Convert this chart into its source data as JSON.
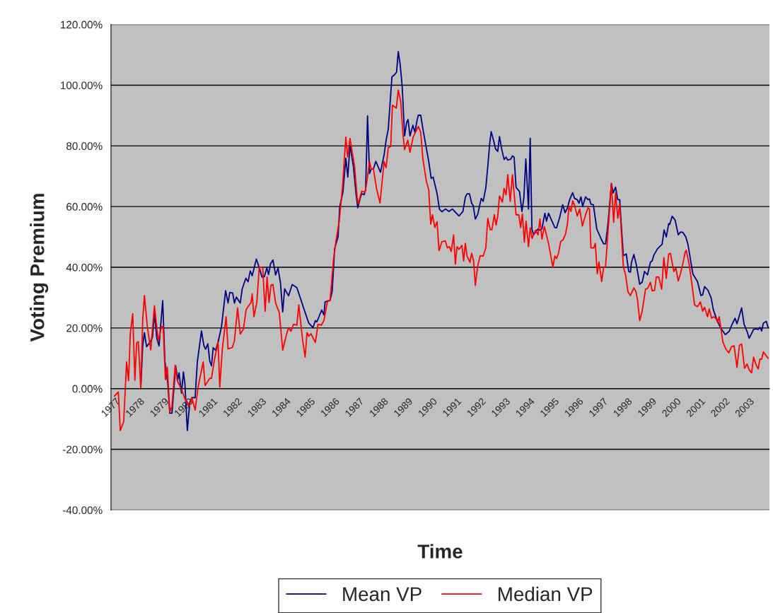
{
  "chart_data": {
    "type": "line",
    "xlabel": "Time",
    "ylabel": "Voting Premium",
    "xlim": [
      1977,
      2004
    ],
    "xticks": [
      1977,
      1978,
      1979,
      1980,
      1981,
      1982,
      1983,
      1984,
      1985,
      1986,
      1987,
      1988,
      1989,
      1990,
      1991,
      1992,
      1993,
      1994,
      1995,
      1996,
      1997,
      1998,
      1999,
      2000,
      2001,
      2002,
      2003,
      {
        "value": 2004,
        "label": null
      }
    ],
    "ylim": [
      -40,
      120
    ],
    "yticks": [
      {
        "value": -40,
        "label": "-40.00%"
      },
      {
        "value": -20,
        "label": "-20.00%"
      },
      {
        "value": 0,
        "label": "0.00%"
      },
      {
        "value": 20,
        "label": "20.00%"
      },
      {
        "value": 40,
        "label": "40.00%"
      },
      {
        "value": 60,
        "label": "60.00%"
      },
      {
        "value": 80,
        "label": "80.00%"
      },
      {
        "value": 100,
        "label": "100.00%"
      },
      {
        "value": 120,
        "label": "120.00%"
      }
    ],
    "grid": "y",
    "legend": "bottom",
    "marker": "none",
    "line_style": "solid",
    "series": [
      {
        "name": "Mean VP",
        "color": "#000080",
        "x": [
          1978.22,
          1978.3,
          1978.37,
          1978.46,
          1978.63,
          1978.7,
          1978.78,
          1978.88,
          1978.97,
          1979.12,
          1979.21,
          1979.33,
          1979.41,
          1979.5,
          1979.65,
          1979.74,
          1979.79,
          1979.89,
          1979.97,
          1980.03,
          1980.13,
          1980.23,
          1980.32,
          1980.45,
          1980.54,
          1980.71,
          1980.81,
          1980.88,
          1980.97,
          1981.05,
          1981.12,
          1981.19,
          1981.29,
          1981.39,
          1981.53,
          1981.7,
          1981.8,
          1981.87,
          1981.99,
          1982.06,
          1982.14,
          1982.3,
          1982.38,
          1982.53,
          1982.62,
          1982.71,
          1982.79,
          1982.96,
          1983.08,
          1983.19,
          1983.29,
          1983.39,
          1983.46,
          1983.54,
          1983.64,
          1983.75,
          1983.85,
          1983.95,
          1984.04,
          1984.12,
          1984.28,
          1984.43,
          1984.62,
          1984.72,
          1984.96,
          1985.11,
          1985.28,
          1985.38,
          1985.44,
          1985.64,
          1985.73,
          1985.78,
          1985.98,
          1986.07,
          1986.17,
          1986.31,
          1986.38,
          1986.51,
          1986.63,
          1986.71,
          1986.8,
          1986.94,
          1987.04,
          1987.12,
          1987.23,
          1987.28,
          1987.38,
          1987.44,
          1987.52,
          1987.6,
          1987.67,
          1987.76,
          1987.86,
          1988.05,
          1988.2,
          1988.28,
          1988.37,
          1988.52,
          1988.63,
          1988.71,
          1988.78,
          1988.86,
          1988.94,
          1989.04,
          1989.12,
          1989.18,
          1989.26,
          1989.38,
          1989.46,
          1989.55,
          1989.6,
          1989.7,
          1989.79,
          1990.03,
          1990.13,
          1990.21,
          1990.37,
          1990.47,
          1990.57,
          1990.71,
          1990.86,
          1991.0,
          1991.14,
          1991.27,
          1991.43,
          1991.53,
          1991.6,
          1991.7,
          1991.79,
          1991.85,
          1991.94,
          1992.04,
          1992.18,
          1992.26,
          1992.37,
          1992.45,
          1992.53,
          1992.59,
          1992.69,
          1992.77,
          1992.86,
          1992.93,
          1993.03,
          1993.12,
          1993.2,
          1993.27,
          1993.4,
          1993.46,
          1993.53,
          1993.61,
          1993.75,
          1993.85,
          1993.93,
          1994.01,
          1994.12,
          1994.19,
          1994.26,
          1994.33,
          1994.5,
          1994.56,
          1994.67,
          1994.79,
          1994.86,
          1994.94,
          1995.2,
          1995.27,
          1995.4,
          1995.52,
          1995.62,
          1995.72,
          1995.8,
          1995.93,
          1996.01,
          1996.12,
          1996.19,
          1996.27,
          1996.34,
          1996.46,
          1996.56,
          1996.62,
          1996.68,
          1996.78,
          1996.92,
          1997.09,
          1997.2,
          1997.28,
          1997.38,
          1997.52,
          1997.59,
          1997.69,
          1997.78,
          1997.86,
          1997.94,
          1998.01,
          1998.13,
          1998.23,
          1998.3,
          1998.34,
          1998.44,
          1998.54,
          1998.68,
          1998.78,
          1998.88,
          1999.0,
          1999.12,
          1999.19,
          1999.26,
          1999.41,
          1999.6,
          1999.68,
          1999.77,
          1999.87,
          1999.91,
          2000.01,
          2000.13,
          2000.26,
          2000.35,
          2000.45,
          2000.57,
          2000.66,
          2000.86,
          2001.05,
          2001.19,
          2001.26,
          2001.34,
          2001.48,
          2001.61,
          2001.7,
          2001.82,
          2001.99,
          2002.19,
          2002.35,
          2002.45,
          2002.59,
          2002.67,
          2002.86,
          2002.96,
          2003.08,
          2003.17,
          2003.35,
          2003.44,
          2003.54,
          2003.61,
          2003.68,
          2003.75,
          2003.87,
          2003.95
        ],
        "values": [
          0,
          14.1,
          18.4,
          13.8,
          15.7,
          16.9,
          24.7,
          16.5,
          14.1,
          29,
          9.1,
          1.6,
          -8.1,
          -8.1,
          7.5,
          3,
          5.2,
          -1.5,
          5.5,
          1.6,
          -13.8,
          -4.6,
          -2.9,
          -3.0,
          8.8,
          19,
          14.1,
          13,
          14.8,
          9.1,
          7.5,
          13.5,
          12.6,
          15.3,
          20.4,
          32.3,
          28.2,
          31.7,
          31.5,
          28.2,
          30.2,
          28.2,
          32.9,
          36.4,
          35.2,
          38.8,
          37.2,
          42.7,
          39.9,
          36.8,
          36.9,
          39.8,
          37.6,
          41.1,
          42.4,
          37.5,
          39.7,
          34.8,
          25.3,
          32.9,
          30.6,
          34.3,
          33.3,
          30.9,
          25.1,
          21.6,
          20.1,
          22.4,
          22,
          25.9,
          24.3,
          28.6,
          29,
          32.1,
          46.1,
          50,
          60,
          64.7,
          75.9,
          69.7,
          80.2,
          73.2,
          64.7,
          59.6,
          63.1,
          64.3,
          63.9,
          65.5,
          89.9,
          70.9,
          72.4,
          72.4,
          74.9,
          71.3,
          77.1,
          81.8,
          85.6,
          102.7,
          103.5,
          104.3,
          111.1,
          106.6,
          99.6,
          83.3,
          87.6,
          88.7,
          83.3,
          86.8,
          84.5,
          88.4,
          90.1,
          90.1,
          85.6,
          74.8,
          69.3,
          69.7,
          64.3,
          59.1,
          58.3,
          59.2,
          58.4,
          59.2,
          58,
          56.9,
          58.4,
          63.1,
          64.2,
          64.2,
          61.1,
          60.4,
          55.9,
          57.5,
          62.7,
          61.7,
          66.2,
          73.2,
          80.9,
          84.7,
          81.7,
          79,
          78.2,
          83.1,
          78.6,
          75.5,
          76.3,
          75.3,
          75.7,
          76.7,
          76.3,
          66.3,
          65,
          58.4,
          62.9,
          75.7,
          59.2,
          82.5,
          52.6,
          50.7,
          52.6,
          52.2,
          52.6,
          57.8,
          55.2,
          57.8,
          53.1,
          53,
          56.5,
          60.6,
          58,
          59.6,
          62.1,
          64.6,
          62.7,
          62.3,
          61.1,
          63.2,
          60.1,
          63.2,
          62.3,
          62.5,
          60.8,
          60.6,
          52.6,
          49.5,
          47.7,
          47.7,
          54.4,
          67.6,
          64.5,
          66.4,
          62.3,
          62.3,
          52.1,
          43.8,
          44.4,
          38.6,
          38.4,
          41.5,
          44.2,
          40.9,
          34.4,
          35.1,
          38.6,
          37.5,
          41.7,
          42.1,
          44,
          46.1,
          47.6,
          52.3,
          50,
          54.4,
          54.1,
          56.8,
          55.6,
          50.7,
          51.6,
          51.5,
          50,
          47.5,
          37.8,
          35.3,
          30.7,
          30.9,
          33.6,
          32.4,
          29.9,
          26,
          23.2,
          20.1,
          17.8,
          18.9,
          20.9,
          23.2,
          21.4,
          26.6,
          21.2,
          18.9,
          16.6,
          19.5,
          19.7,
          19.5,
          20.2,
          19,
          21.6,
          22.2,
          20.1
        ]
      },
      {
        "name": "Median VP",
        "color": "#ff0000",
        "x": [
          1977.14,
          1977.3,
          1977.38,
          1977.52,
          1977.64,
          1977.72,
          1977.79,
          1977.89,
          1977.98,
          1978.05,
          1978.12,
          1978.22,
          1978.3,
          1978.37,
          1978.49,
          1978.63,
          1978.78,
          1978.94,
          1979.07,
          1979.14,
          1979.23,
          1979.31,
          1979.41,
          1979.5,
          1979.63,
          1979.72,
          1979.89,
          1980.03,
          1980.21,
          1980.32,
          1980.45,
          1980.57,
          1980.78,
          1980.86,
          1981.05,
          1981.12,
          1981.24,
          1981.39,
          1981.46,
          1981.56,
          1981.72,
          1981.8,
          1981.97,
          1982.06,
          1982.19,
          1982.3,
          1982.43,
          1982.54,
          1982.74,
          1982.79,
          1982.86,
          1982.98,
          1983.08,
          1983.22,
          1983.32,
          1983.4,
          1983.48,
          1983.56,
          1983.64,
          1983.75,
          1983.9,
          1984.04,
          1984.19,
          1984.28,
          1984.38,
          1984.48,
          1984.62,
          1984.7,
          1984.86,
          1984.96,
          1985.04,
          1985.11,
          1985.2,
          1985.38,
          1985.49,
          1985.62,
          1985.73,
          1985.88,
          1985.98,
          1986.12,
          1986.22,
          1986.36,
          1986.49,
          1986.63,
          1986.7,
          1986.8,
          1986.99,
          1987.09,
          1987.14,
          1987.28,
          1987.41,
          1987.47,
          1987.6,
          1987.67,
          1987.76,
          1987.89,
          1988.03,
          1988.2,
          1988.28,
          1988.37,
          1988.47,
          1988.54,
          1988.7,
          1988.78,
          1988.88,
          1988.97,
          1989.04,
          1989.17,
          1989.26,
          1989.39,
          1989.6,
          1989.7,
          1989.79,
          1989.94,
          1990.03,
          1990.11,
          1990.18,
          1990.28,
          1990.37,
          1990.45,
          1990.57,
          1990.71,
          1990.79,
          1990.88,
          1990.95,
          1991.05,
          1991.12,
          1991.19,
          1991.27,
          1991.39,
          1991.46,
          1991.53,
          1991.6,
          1991.72,
          1991.79,
          1991.87,
          1991.94,
          1992.04,
          1992.14,
          1992.26,
          1992.37,
          1992.45,
          1992.55,
          1992.62,
          1992.72,
          1992.79,
          1992.86,
          1992.93,
          1993.05,
          1993.12,
          1993.2,
          1993.27,
          1993.37,
          1993.46,
          1993.61,
          1993.72,
          1993.8,
          1993.87,
          1993.95,
          1994.02,
          1994.12,
          1994.19,
          1994.27,
          1994.41,
          1994.51,
          1994.59,
          1994.67,
          1994.77,
          1994.94,
          1995.12,
          1995.2,
          1995.27,
          1995.35,
          1995.44,
          1995.54,
          1995.64,
          1995.72,
          1995.78,
          1995.86,
          1995.93,
          1996.01,
          1996.12,
          1996.22,
          1996.33,
          1996.46,
          1996.56,
          1996.62,
          1996.68,
          1996.8,
          1996.86,
          1996.94,
          1997.01,
          1997.12,
          1997.2,
          1997.28,
          1997.38,
          1997.52,
          1997.61,
          1997.69,
          1997.78,
          1997.86,
          1997.94,
          1998.01,
          1998.1,
          1998.2,
          1998.3,
          1998.44,
          1998.52,
          1998.59,
          1998.68,
          1998.78,
          1998.92,
          1999.0,
          1999.12,
          1999.19,
          1999.29,
          1999.36,
          1999.46,
          1999.58,
          1999.67,
          1999.77,
          1999.87,
          1999.94,
          2000.08,
          2000.16,
          2000.26,
          2000.35,
          2000.45,
          2000.55,
          2000.59,
          2000.71,
          2000.81,
          2000.93,
          2001.05,
          2001.17,
          2001.26,
          2001.34,
          2001.46,
          2001.53,
          2001.63,
          2001.7,
          2001.8,
          2001.87,
          2001.94,
          2002.09,
          2002.21,
          2002.33,
          2002.45,
          2002.55,
          2002.67,
          2002.77,
          2002.86,
          2002.98,
          2003.08,
          2003.17,
          2003.27,
          2003.35,
          2003.46,
          2003.54,
          2003.61,
          2003.68,
          2003.75,
          2003.87,
          2003.95
        ],
        "values": [
          -2.5,
          -1.1,
          -13.8,
          -10.9,
          8.8,
          2.6,
          18,
          24.7,
          2.8,
          15.1,
          15.5,
          0,
          22.7,
          30.7,
          20.4,
          12.8,
          27.3,
          15.7,
          20.4,
          20.5,
          3.0,
          7.1,
          -7.7,
          -5.8,
          7.7,
          2.6,
          -0.2,
          -3.4,
          -5.8,
          -3.0,
          -7.1,
          0.5,
          8.8,
          1.0,
          3.4,
          3.4,
          9.5,
          15.3,
          0.5,
          12.6,
          23.7,
          13.1,
          13.5,
          15.7,
          26.6,
          18,
          19.6,
          26,
          28.4,
          31.2,
          23.7,
          28.4,
          40.1,
          39.9,
          25.5,
          36.8,
          28.4,
          34.1,
          34.3,
          28.2,
          25.1,
          12.7,
          17.7,
          20.1,
          18.9,
          21.2,
          20.9,
          27.6,
          15.8,
          10.4,
          18.5,
          17.3,
          18.1,
          15.2,
          21.2,
          20.9,
          22.4,
          29,
          29,
          42.2,
          48.4,
          55.4,
          66.2,
          82.9,
          76.3,
          82.5,
          73.2,
          63.1,
          60.8,
          65.1,
          64.7,
          67,
          74.8,
          72.4,
          72.4,
          65.9,
          61.2,
          74.8,
          72.8,
          79.4,
          79.8,
          93.4,
          92.5,
          98.4,
          94.6,
          84.1,
          78.8,
          81.9,
          77.9,
          82.9,
          86.4,
          84.5,
          75.6,
          68,
          65.5,
          54.2,
          57.3,
          53.1,
          55,
          45.5,
          48.4,
          48.7,
          46.4,
          46.8,
          45.2,
          50.7,
          41,
          46.8,
          45.9,
          47.2,
          42.1,
          47.9,
          43.7,
          41.6,
          44.6,
          42.1,
          34,
          40.6,
          43.8,
          43.7,
          46.4,
          56.1,
          52.4,
          52.4,
          57.3,
          53.9,
          56.9,
          63.5,
          61.5,
          66,
          63.9,
          70.5,
          61.7,
          70.5,
          57.3,
          57.3,
          53.1,
          57.6,
          48.3,
          55.2,
          46.8,
          53,
          49.5,
          52.2,
          50.7,
          55.9,
          49.3,
          53.4,
          47.9,
          40,
          43.7,
          42.9,
          44.6,
          48.5,
          49.1,
          51,
          54.5,
          60.1,
          58.4,
          61.9,
          60.4,
          56.9,
          59.2,
          53.6,
          57.3,
          59.6,
          59.2,
          46.4,
          46.4,
          47.9,
          37.9,
          41.7,
          35.3,
          40,
          40.2,
          51.7,
          67.6,
          54.8,
          64.5,
          56.1,
          60.8,
          49.8,
          40.2,
          37.5,
          31.9,
          30.7,
          33.2,
          32.1,
          29.3,
          22.4,
          25.5,
          32.8,
          33,
          35,
          32.2,
          32.4,
          36.8,
          36.8,
          32.8,
          43.2,
          36.3,
          44.4,
          44.6,
          38.6,
          39.8,
          35.5,
          37.8,
          41.3,
          45.2,
          45.6,
          40.9,
          35.1,
          27.6,
          27,
          28.6,
          25.5,
          26.8,
          23.7,
          26.3,
          23.2,
          23.7,
          23.2,
          21.9,
          23.7,
          15.4,
          13.1,
          11.8,
          13.9,
          14.1,
          7,
          14.3,
          14.7,
          6.7,
          8.1,
          6.2,
          5.2,
          10.4,
          7.7,
          6.5,
          9.8,
          9.7,
          12.1,
          10.8,
          10
        ]
      }
    ]
  }
}
